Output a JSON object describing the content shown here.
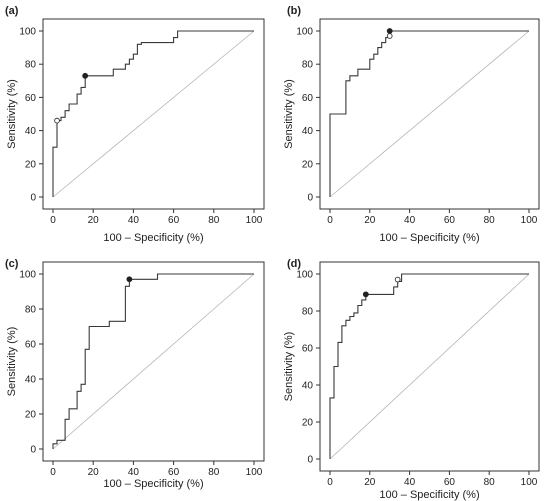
{
  "chart_data": [
    {
      "type": "line",
      "panel_label": "(a)",
      "xlabel": "100 – Specificity (%)",
      "ylabel": "Sensitivity (%)",
      "xlim": [
        0,
        100
      ],
      "ylim": [
        0,
        100
      ],
      "xticks": [
        "0",
        "20",
        "40",
        "60",
        "80",
        "100"
      ],
      "yticks": [
        "0",
        "20",
        "40",
        "60",
        "80",
        "100"
      ],
      "reference_line": "diagonal",
      "x": [
        0,
        0,
        2,
        2,
        4,
        4,
        6,
        6,
        8,
        8,
        12,
        12,
        14,
        14,
        16,
        16,
        30,
        30,
        36,
        36,
        38,
        38,
        40,
        40,
        42,
        42,
        44,
        44,
        60,
        60,
        62,
        62,
        100
      ],
      "y": [
        0,
        30,
        30,
        46,
        46,
        48,
        48,
        52,
        52,
        56,
        56,
        62,
        62,
        66,
        66,
        73,
        73,
        77,
        77,
        80,
        80,
        83,
        83,
        86,
        86,
        92,
        92,
        93,
        93,
        96,
        96,
        100,
        100
      ],
      "filled_point": {
        "x": 16,
        "y": 73
      },
      "open_point": {
        "x": 2,
        "y": 46
      }
    },
    {
      "type": "line",
      "panel_label": "(b)",
      "xlabel": "100 – Specificity (%)",
      "ylabel": "Sensitivity (%)",
      "xlim": [
        0,
        100
      ],
      "ylim": [
        0,
        100
      ],
      "xticks": [
        "0",
        "20",
        "40",
        "60",
        "80",
        "100"
      ],
      "yticks": [
        "0",
        "20",
        "40",
        "60",
        "80",
        "100"
      ],
      "reference_line": "diagonal",
      "x": [
        0,
        0,
        2,
        2,
        8,
        8,
        10,
        10,
        14,
        14,
        20,
        20,
        22,
        22,
        24,
        24,
        26,
        26,
        28,
        28,
        30,
        30,
        100
      ],
      "y": [
        0,
        50,
        50,
        50,
        50,
        70,
        70,
        73,
        73,
        77,
        77,
        83,
        83,
        86,
        86,
        90,
        90,
        93,
        93,
        96,
        96,
        100,
        100
      ],
      "filled_point": {
        "x": 30,
        "y": 100
      },
      "open_point": {
        "x": 30,
        "y": 97
      }
    },
    {
      "type": "line",
      "panel_label": "(c)",
      "xlabel": "100 – Specificity (%)",
      "ylabel": "Sensitivity (%)",
      "xlim": [
        0,
        100
      ],
      "ylim": [
        0,
        100
      ],
      "xticks": [
        "0",
        "20",
        "40",
        "60",
        "80",
        "100"
      ],
      "yticks": [
        "0",
        "20",
        "40",
        "60",
        "80",
        "100"
      ],
      "reference_line": "diagonal",
      "x": [
        0,
        0,
        2,
        2,
        6,
        6,
        8,
        8,
        12,
        12,
        14,
        14,
        16,
        16,
        18,
        18,
        28,
        28,
        32,
        32,
        36,
        36,
        38,
        38,
        52,
        52,
        100
      ],
      "y": [
        0,
        3,
        3,
        5,
        5,
        17,
        17,
        23,
        23,
        33,
        33,
        37,
        37,
        57,
        57,
        70,
        70,
        73,
        73,
        73,
        73,
        93,
        93,
        97,
        97,
        100,
        100
      ],
      "filled_point": {
        "x": 38,
        "y": 97
      },
      "open_point": null
    },
    {
      "type": "line",
      "panel_label": "(d)",
      "xlabel": "100 – Specificity (%)",
      "ylabel": "Sensitivity (%)",
      "xlim": [
        0,
        100
      ],
      "ylim": [
        0,
        100
      ],
      "xticks": [
        "0",
        "20",
        "40",
        "60",
        "80",
        "100"
      ],
      "yticks": [
        "0",
        "20",
        "40",
        "60",
        "80",
        "100"
      ],
      "reference_line": "diagonal",
      "x": [
        0,
        0,
        2,
        2,
        4,
        4,
        6,
        6,
        8,
        8,
        10,
        10,
        12,
        12,
        14,
        14,
        16,
        16,
        18,
        18,
        32,
        32,
        34,
        34,
        36,
        36,
        100
      ],
      "y": [
        0,
        33,
        33,
        50,
        50,
        63,
        63,
        72,
        72,
        75,
        75,
        77,
        77,
        79,
        79,
        83,
        83,
        86,
        86,
        89,
        89,
        93,
        93,
        96,
        96,
        100,
        100
      ],
      "filled_point": {
        "x": 18,
        "y": 89
      },
      "open_point": {
        "x": 34,
        "y": 97
      }
    }
  ]
}
